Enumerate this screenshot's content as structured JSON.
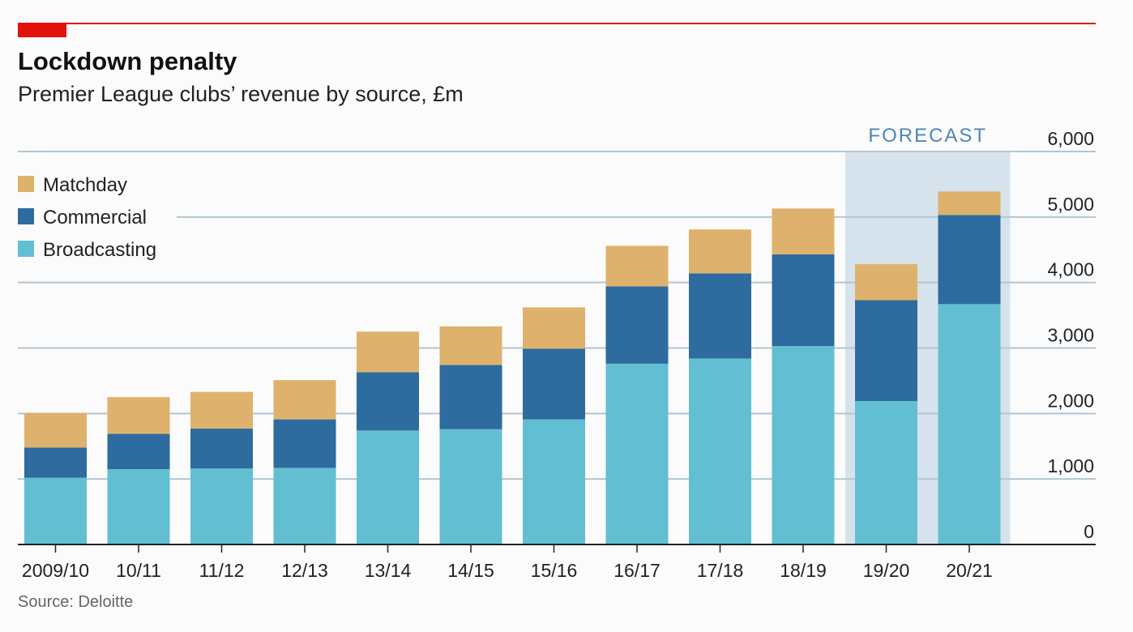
{
  "header": {
    "title": "Lockdown penalty",
    "subtitle": "Premier League clubs’ revenue by source, £m"
  },
  "footer": {
    "source": "Source: Deloitte"
  },
  "forecast_label": "FORECAST",
  "colors": {
    "matchday": "#deb26c",
    "commercial": "#2e6b9e",
    "broadcasting": "#62bfd1",
    "forecast_shade": "#d6e3ec",
    "grid": "#b3c6d3",
    "accent_red": "#e3120b"
  },
  "chart_data": {
    "type": "bar",
    "stacked": true,
    "categories": [
      "2009/10",
      "10/11",
      "11/12",
      "12/13",
      "13/14",
      "14/15",
      "15/16",
      "16/17",
      "17/18",
      "18/19",
      "19/20",
      "20/21"
    ],
    "forecast_categories": [
      "19/20",
      "20/21"
    ],
    "series": [
      {
        "name": "Broadcasting",
        "values": [
          1020,
          1150,
          1160,
          1170,
          1740,
          1760,
          1910,
          2760,
          2840,
          3030,
          2190,
          3670
        ]
      },
      {
        "name": "Commercial",
        "values": [
          460,
          540,
          610,
          740,
          890,
          980,
          1080,
          1180,
          1300,
          1400,
          1540,
          1360
        ]
      },
      {
        "name": "Matchday",
        "values": [
          530,
          560,
          560,
          600,
          620,
          590,
          630,
          620,
          670,
          700,
          550,
          360
        ]
      }
    ],
    "ylim": [
      0,
      6000
    ],
    "yticks": [
      "0",
      "1,000",
      "2,000",
      "3,000",
      "4,000",
      "5,000",
      "6,000"
    ],
    "ytick_values": [
      0,
      1000,
      2000,
      3000,
      4000,
      5000,
      6000
    ],
    "legend": [
      "Matchday",
      "Commercial",
      "Broadcasting"
    ],
    "legend_position": "top-left",
    "y_axis_side": "right",
    "grid": true
  }
}
